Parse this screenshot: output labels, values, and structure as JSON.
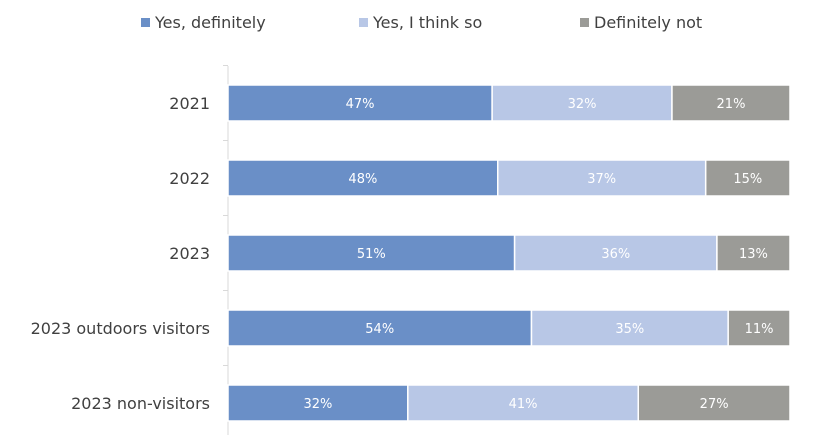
{
  "chart_data": {
    "type": "bar",
    "orientation": "horizontal",
    "stacked": true,
    "percent_stacked": true,
    "categories": [
      "2021",
      "2022",
      "2023",
      "2023 outdoors visitors",
      "2023 non-visitors"
    ],
    "series": [
      {
        "name": "Yes, definitely",
        "values": [
          47,
          48,
          51,
          54,
          32
        ],
        "color": "#6a8fc7"
      },
      {
        "name": "Yes, I think so",
        "values": [
          32,
          37,
          36,
          35,
          41
        ],
        "color": "#b8c7e6"
      },
      {
        "name": "Definitely not",
        "values": [
          21,
          15,
          13,
          11,
          27
        ],
        "color": "#9b9b97"
      }
    ],
    "value_suffix": "%",
    "xlim": [
      0,
      100
    ],
    "grid": false,
    "legend_position": "top",
    "label_color": "#ffffff",
    "text_color": "#404040",
    "axis_color": "#d9d9d9"
  }
}
